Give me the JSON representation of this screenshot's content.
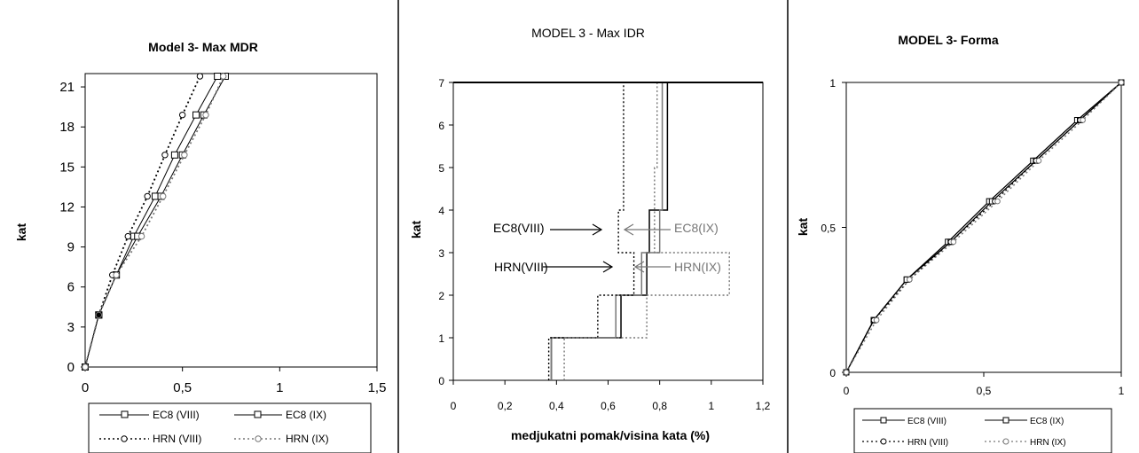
{
  "chart_data": [
    {
      "type": "line",
      "title": "Model 3- Max MDR",
      "xlabel": "",
      "ylabel": "kat",
      "xlim": [
        0,
        1.5
      ],
      "ylim": [
        0,
        22
      ],
      "xticks": [
        "0",
        "0,5",
        "1",
        "1,5"
      ],
      "yticks": [
        "0",
        "3",
        "6",
        "9",
        "12",
        "15",
        "18",
        "21"
      ],
      "y": [
        0,
        3.9,
        6.9,
        9.8,
        12.8,
        15.9,
        18.9,
        21.8
      ],
      "series": [
        {
          "name": "EC8 (VIII)",
          "style": "solid",
          "marker": "square",
          "x": [
            0,
            0.07,
            0.16,
            0.25,
            0.36,
            0.46,
            0.57,
            0.68
          ]
        },
        {
          "name": "EC8 (IX)",
          "style": "solid",
          "marker": "square",
          "x": [
            0,
            0.07,
            0.16,
            0.27,
            0.39,
            0.5,
            0.61,
            0.72
          ]
        },
        {
          "name": "HRN (VIII)",
          "style": "dotted",
          "marker": "circle",
          "x": [
            0,
            0.07,
            0.14,
            0.22,
            0.32,
            0.41,
            0.5,
            0.59
          ]
        },
        {
          "name": "HRN (IX)",
          "style": "dotted",
          "marker": "circle",
          "x": [
            0,
            0.07,
            0.16,
            0.29,
            0.4,
            0.51,
            0.62,
            0.71
          ]
        }
      ],
      "legend": "bottom"
    },
    {
      "type": "line",
      "title": "MODEL 3 - Max IDR",
      "xlabel": "medjukatni pomak/visina kata (%)",
      "ylabel": "kat",
      "xlim": [
        0,
        1.2
      ],
      "ylim": [
        0,
        7
      ],
      "xticks": [
        "0",
        "0,2",
        "0,4",
        "0,6",
        "0,8",
        "1",
        "1,2"
      ],
      "yticks": [
        "0",
        "1",
        "2",
        "3",
        "4",
        "5",
        "6",
        "7"
      ],
      "series": [
        {
          "name": "EC8(VIII)",
          "style": "solid",
          "color": "#000000",
          "values": [
            0.38,
            0.65,
            0.75,
            0.76,
            0.83,
            0.83,
            0.83
          ]
        },
        {
          "name": "EC8(IX)",
          "style": "solid",
          "color": "#777777",
          "values": [
            0.38,
            0.63,
            0.73,
            0.8,
            0.81,
            0.81,
            0.81
          ]
        },
        {
          "name": "HRN(VIII)",
          "style": "dotted",
          "color": "#000000",
          "values": [
            0.37,
            0.56,
            0.7,
            0.64,
            0.66,
            0.66,
            0.66
          ]
        },
        {
          "name": "HRN(IX)",
          "style": "dotted",
          "color": "#777777",
          "values": [
            0.43,
            0.75,
            1.07,
            0.78,
            0.78,
            0.79,
            0.79
          ]
        }
      ],
      "annotations": [
        "EC8(VIII)",
        "EC8(IX)",
        "HRN(VIII)",
        "HRN(IX)"
      ]
    },
    {
      "type": "line",
      "title": "MODEL 3- Forma",
      "xlabel": "",
      "ylabel": "kat",
      "xlim": [
        0,
        1
      ],
      "ylim": [
        0,
        1
      ],
      "xticks": [
        "0",
        "0,5",
        "1"
      ],
      "yticks": [
        "0",
        "0,5",
        "1"
      ],
      "y": [
        0,
        0.18,
        0.32,
        0.45,
        0.59,
        0.73,
        0.87,
        1
      ],
      "series": [
        {
          "name": "EC8 (VIII)",
          "style": "solid",
          "marker": "square",
          "x": [
            0,
            0.1,
            0.22,
            0.37,
            0.52,
            0.68,
            0.84,
            1
          ]
        },
        {
          "name": "EC8 (IX)",
          "style": "solid",
          "marker": "square",
          "x": [
            0,
            0.1,
            0.22,
            0.38,
            0.53,
            0.69,
            0.85,
            1
          ]
        },
        {
          "name": "HRN (VIII)",
          "style": "dotted",
          "marker": "circle",
          "x": [
            0,
            0.1,
            0.23,
            0.38,
            0.54,
            0.69,
            0.85,
            1
          ]
        },
        {
          "name": "HRN (IX)",
          "style": "dotted",
          "marker": "circle",
          "x": [
            0,
            0.11,
            0.23,
            0.39,
            0.55,
            0.7,
            0.86,
            1
          ]
        }
      ],
      "legend": "bottom"
    }
  ]
}
